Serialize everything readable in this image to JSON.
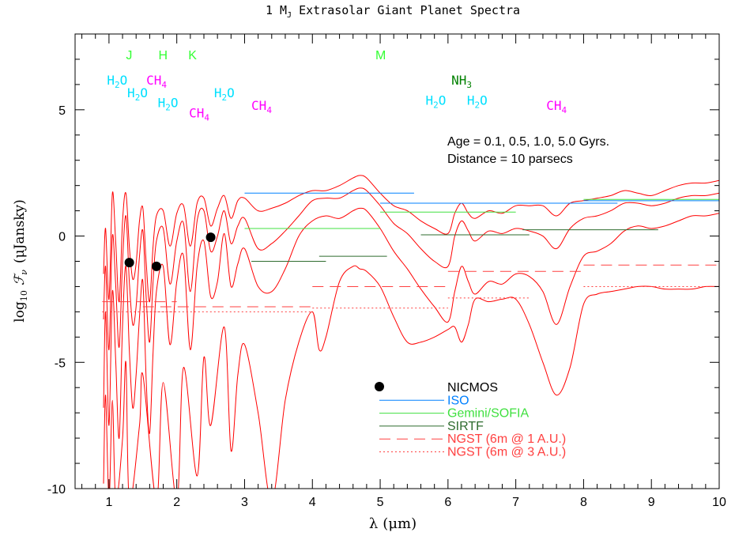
{
  "chart_data": {
    "type": "line",
    "title": "1 M",
    "title_sub": "J",
    "title_rest": " Extrasolar Giant Planet Spectra",
    "xlabel_symbol": "λ",
    "xlabel_unit": "(μm)",
    "ylabel_prefix": "log",
    "ylabel_sub": "10",
    "ylabel_symbol": "ℱ",
    "ylabel_symbol_sub": "ν",
    "ylabel_unit": "(μJansky)",
    "xlim": [
      0.5,
      10
    ],
    "ylim": [
      -10,
      8
    ],
    "x_ticks": [
      1,
      2,
      3,
      4,
      5,
      6,
      7,
      8,
      9,
      10
    ],
    "x_tick_labels": [
      "1",
      "2",
      "3",
      "4",
      "5",
      "6",
      "7",
      "8",
      "9",
      "10"
    ],
    "y_ticks": [
      -10,
      -5,
      0,
      5
    ],
    "y_tick_labels": [
      "-10",
      "-5",
      "0",
      "5"
    ],
    "info_lines": [
      "Age = 0.1, 0.5, 1.0, 5.0 Gyrs.",
      "Distance = 10 parsecs"
    ],
    "band_labels": [
      {
        "text": "J",
        "x": 1.25,
        "y": 7.0
      },
      {
        "text": "H",
        "x": 1.73,
        "y": 7.0
      },
      {
        "text": "K",
        "x": 2.17,
        "y": 7.0
      },
      {
        "text": "M",
        "x": 4.93,
        "y": 7.0
      }
    ],
    "molecule_labels": [
      {
        "base": "H",
        "sub": "2",
        "tail": "O",
        "x": 0.97,
        "y": 6.0,
        "color": "#00e0ff"
      },
      {
        "base": "CH",
        "sub": "4",
        "tail": "",
        "x": 1.55,
        "y": 6.0,
        "color": "#ff00ff"
      },
      {
        "base": "H",
        "sub": "2",
        "tail": "O",
        "x": 1.27,
        "y": 5.5,
        "color": "#00e0ff"
      },
      {
        "base": "H",
        "sub": "2",
        "tail": "O",
        "x": 1.72,
        "y": 5.1,
        "color": "#00e0ff"
      },
      {
        "base": "CH",
        "sub": "4",
        "tail": "",
        "x": 2.18,
        "y": 4.7,
        "color": "#ff00ff"
      },
      {
        "base": "H",
        "sub": "2",
        "tail": "O",
        "x": 2.55,
        "y": 5.5,
        "color": "#00e0ff"
      },
      {
        "base": "CH",
        "sub": "4",
        "tail": "",
        "x": 3.1,
        "y": 5.0,
        "color": "#ff00ff"
      },
      {
        "base": "NH",
        "sub": "3",
        "tail": "",
        "x": 6.05,
        "y": 6.0,
        "color": "#008000"
      },
      {
        "base": "H",
        "sub": "2",
        "tail": "O",
        "x": 5.67,
        "y": 5.2,
        "color": "#00e0ff"
      },
      {
        "base": "H",
        "sub": "2",
        "tail": "O",
        "x": 6.28,
        "y": 5.2,
        "color": "#00e0ff"
      },
      {
        "base": "CH",
        "sub": "4",
        "tail": "",
        "x": 7.45,
        "y": 5.0,
        "color": "#ff00ff"
      }
    ],
    "series": [
      {
        "color": "#ff0000",
        "x": [
          0.92,
          0.95,
          1.0,
          1.05,
          1.1,
          1.15,
          1.2,
          1.25,
          1.3,
          1.35,
          1.4,
          1.45,
          1.5,
          1.55,
          1.6,
          1.65,
          1.7,
          1.8,
          1.9,
          2.0,
          2.1,
          2.2,
          2.3,
          2.4,
          2.5,
          2.6,
          2.7,
          2.8,
          2.9,
          3.0,
          3.2,
          3.4,
          3.6,
          3.8,
          4.0,
          4.2,
          4.4,
          4.6,
          4.7,
          4.8,
          5.0,
          5.2,
          5.4,
          5.6,
          5.8,
          6.0,
          6.1,
          6.2,
          6.3,
          6.4,
          6.6,
          6.8,
          7.0,
          7.2,
          7.4,
          7.6,
          7.8,
          8.0,
          8.2,
          8.4,
          8.6,
          8.8,
          9.0,
          9.2,
          9.4,
          9.6,
          9.8,
          10.0
        ],
        "y": [
          -1.5,
          0.3,
          -2.5,
          1.7,
          -0.3,
          -2.6,
          0.6,
          1.7,
          -0.4,
          -1.7,
          -1.1,
          0.6,
          1.1,
          -1.1,
          -2.6,
          -0.4,
          0.8,
          1.0,
          -0.4,
          0.9,
          1.2,
          -0.4,
          1.3,
          1.5,
          0.4,
          1.1,
          1.6,
          0.7,
          1.4,
          1.5,
          1.0,
          1.1,
          1.3,
          1.6,
          1.8,
          1.8,
          2.0,
          2.3,
          2.4,
          2.3,
          1.7,
          1.2,
          1.0,
          0.6,
          0.3,
          0.1,
          0.9,
          1.3,
          0.9,
          0.7,
          1.0,
          0.9,
          1.2,
          1.2,
          1.2,
          0.8,
          1.3,
          1.4,
          1.5,
          1.6,
          1.8,
          1.7,
          1.6,
          1.8,
          2.0,
          2.1,
          2.1,
          2.2
        ]
      },
      {
        "color": "#ff0000",
        "x": [
          0.92,
          0.95,
          1.0,
          1.05,
          1.1,
          1.15,
          1.2,
          1.25,
          1.3,
          1.35,
          1.4,
          1.45,
          1.5,
          1.55,
          1.6,
          1.65,
          1.7,
          1.8,
          1.9,
          2.0,
          2.1,
          2.2,
          2.3,
          2.4,
          2.5,
          2.6,
          2.7,
          2.8,
          2.9,
          3.0,
          3.2,
          3.4,
          3.6,
          3.8,
          4.0,
          4.2,
          4.4,
          4.6,
          4.7,
          4.8,
          5.0,
          5.2,
          5.4,
          5.6,
          5.8,
          6.0,
          6.1,
          6.2,
          6.3,
          6.4,
          6.6,
          6.8,
          7.0,
          7.2,
          7.4,
          7.6,
          7.8,
          8.0,
          8.2,
          8.4,
          8.6,
          8.8,
          9.0,
          9.2,
          9.4,
          9.6,
          9.8,
          10.0
        ],
        "y": [
          -3.3,
          -1.2,
          -4.5,
          0.0,
          -2.0,
          -4.4,
          -1.0,
          0.8,
          -1.8,
          -3.5,
          -2.8,
          -0.8,
          0.2,
          -2.5,
          -4.2,
          -1.8,
          -0.2,
          0.3,
          -1.9,
          -0.2,
          0.5,
          -2.2,
          0.6,
          1.0,
          -0.6,
          0.0,
          1.0,
          -0.3,
          0.4,
          0.7,
          -0.5,
          -0.3,
          0.2,
          0.8,
          1.4,
          1.5,
          1.5,
          1.8,
          1.9,
          1.8,
          1.2,
          0.5,
          0.1,
          -0.5,
          -1.0,
          -1.2,
          0.0,
          0.6,
          0.2,
          -0.2,
          0.2,
          0.1,
          0.3,
          0.2,
          0.0,
          -0.5,
          0.3,
          0.7,
          0.8,
          1.0,
          1.3,
          1.3,
          1.2,
          1.3,
          1.5,
          1.6,
          1.6,
          1.7
        ]
      },
      {
        "color": "#ff0000",
        "x": [
          0.92,
          0.95,
          1.0,
          1.05,
          1.1,
          1.15,
          1.2,
          1.25,
          1.3,
          1.35,
          1.4,
          1.45,
          1.5,
          1.55,
          1.6,
          1.65,
          1.7,
          1.8,
          1.9,
          2.0,
          2.1,
          2.2,
          2.3,
          2.4,
          2.5,
          2.6,
          2.7,
          2.8,
          2.9,
          3.0,
          3.2,
          3.4,
          3.6,
          3.8,
          4.0,
          4.2,
          4.4,
          4.6,
          4.7,
          4.8,
          5.0,
          5.2,
          5.4,
          5.6,
          5.8,
          6.0,
          6.1,
          6.2,
          6.3,
          6.4,
          6.6,
          6.8,
          7.0,
          7.2,
          7.4,
          7.6,
          7.8,
          8.0,
          8.2,
          8.4,
          8.6,
          8.8,
          9.0,
          9.2,
          9.4,
          9.6,
          9.8,
          10.0
        ],
        "y": [
          -6.8,
          -3.0,
          -7.5,
          -2.2,
          -5.0,
          -8.0,
          -3.5,
          -1.2,
          -4.5,
          -6.8,
          -5.5,
          -3.2,
          -1.8,
          -5.8,
          -7.8,
          -4.6,
          -2.2,
          -1.2,
          -4.3,
          -1.8,
          -0.8,
          -4.5,
          -1.2,
          -0.2,
          -2.4,
          -1.8,
          0.1,
          -2.0,
          -1.1,
          -0.5,
          -2.0,
          -2.2,
          -1.3,
          0.0,
          0.6,
          0.8,
          0.7,
          1.0,
          1.1,
          1.0,
          0.3,
          -0.6,
          -1.3,
          -2.1,
          -2.8,
          -3.4,
          -2.2,
          -1.2,
          -1.8,
          -2.3,
          -1.8,
          -1.9,
          -1.5,
          -1.6,
          -2.2,
          -3.5,
          -2.0,
          -0.8,
          -0.6,
          -0.3,
          0.2,
          0.4,
          0.3,
          0.4,
          0.6,
          0.8,
          0.8,
          0.9
        ]
      },
      {
        "color": "#ff0000",
        "x": [
          0.92,
          0.95,
          1.0,
          1.05,
          1.1,
          1.2,
          1.25,
          1.3,
          1.45,
          1.5,
          1.7,
          1.8,
          2.0,
          2.1,
          2.3,
          2.4,
          2.5,
          2.7,
          2.8,
          2.9,
          3.0,
          3.2,
          3.4,
          3.6,
          3.8,
          4.0,
          4.1,
          4.2,
          4.4,
          4.6,
          4.7,
          4.8,
          5.0,
          5.2,
          5.4,
          5.6,
          5.8,
          6.0,
          6.1,
          6.2,
          6.3,
          6.4,
          6.6,
          6.8,
          7.0,
          7.2,
          7.4,
          7.6,
          7.8,
          8.0,
          8.2,
          8.4,
          8.6,
          8.8,
          9.0,
          9.2,
          9.4,
          9.6,
          9.8,
          10.0
        ],
        "y": [
          -9.8,
          -6.3,
          -10.5,
          -6.5,
          -10.5,
          -8.0,
          -5.0,
          -10.5,
          -7.5,
          -5.5,
          -10.5,
          -5.8,
          -10.5,
          -5.2,
          -9.5,
          -4.8,
          -7.5,
          -3.6,
          -8.5,
          -5.5,
          -4.3,
          -7.0,
          -10.5,
          -6.5,
          -4.2,
          -3.0,
          -4.5,
          -4.0,
          -1.8,
          -1.2,
          -1.3,
          -1.4,
          -2.0,
          -3.2,
          -4.2,
          -4.2,
          -4.0,
          -3.7,
          -3.6,
          -4.2,
          -3.5,
          -2.5,
          -2.6,
          -2.5,
          -2.5,
          -3.5,
          -5.0,
          -6.3,
          -5.2,
          -2.7,
          -2.3,
          -2.2,
          -2.1,
          -2.0,
          -2.0,
          -2.1,
          -2.1,
          -2.1,
          -2.0,
          -2.0
        ]
      }
    ],
    "instrument_segments": [
      {
        "instrument": "ISO",
        "color": "#0080ff",
        "dash": "solid",
        "x0": 3.0,
        "x1": 5.5,
        "y": 1.7
      },
      {
        "instrument": "ISO",
        "color": "#0080ff",
        "dash": "solid",
        "x0": 5.0,
        "x1": 8.5,
        "y": 1.3
      },
      {
        "instrument": "ISO",
        "color": "#0080ff",
        "dash": "solid",
        "x0": 8.0,
        "x1": 10.0,
        "y": 1.4
      },
      {
        "instrument": "Gemini/SOFIA",
        "color": "#40e040",
        "dash": "solid",
        "x0": 3.0,
        "x1": 5.0,
        "y": 0.3
      },
      {
        "instrument": "Gemini/SOFIA",
        "color": "#40e040",
        "dash": "solid",
        "x0": 5.0,
        "x1": 7.0,
        "y": 0.95
      },
      {
        "instrument": "Gemini/SOFIA",
        "color": "#40e040",
        "dash": "solid",
        "x0": 8.0,
        "x1": 10.0,
        "y": 1.45
      },
      {
        "instrument": "SIRTF",
        "color": "#2e6b2e",
        "dash": "solid",
        "x0": 3.1,
        "x1": 4.2,
        "y": -1.0
      },
      {
        "instrument": "SIRTF",
        "color": "#2e6b2e",
        "dash": "solid",
        "x0": 4.1,
        "x1": 5.1,
        "y": -0.8
      },
      {
        "instrument": "SIRTF",
        "color": "#2e6b2e",
        "dash": "solid",
        "x0": 5.6,
        "x1": 7.2,
        "y": 0.05
      },
      {
        "instrument": "SIRTF",
        "color": "#2e6b2e",
        "dash": "solid",
        "x0": 7.1,
        "x1": 9.1,
        "y": 0.25
      },
      {
        "instrument": "NGST (6m @ 1 A.U.)",
        "color": "#ff4040",
        "dash": "dashed",
        "x0": 0.9,
        "x1": 2.0,
        "y": -2.6
      },
      {
        "instrument": "NGST (6m @ 1 A.U.)",
        "color": "#ff4040",
        "dash": "dashed",
        "x0": 1.5,
        "x1": 4.0,
        "y": -2.8
      },
      {
        "instrument": "NGST (6m @ 1 A.U.)",
        "color": "#ff4040",
        "dash": "dashed",
        "x0": 4.0,
        "x1": 6.0,
        "y": -2.0
      },
      {
        "instrument": "NGST (6m @ 1 A.U.)",
        "color": "#ff4040",
        "dash": "dashed",
        "x0": 6.0,
        "x1": 8.0,
        "y": -1.4
      },
      {
        "instrument": "NGST (6m @ 1 A.U.)",
        "color": "#ff4040",
        "dash": "dashed",
        "x0": 8.0,
        "x1": 10.0,
        "y": -1.15
      },
      {
        "instrument": "NGST (6m @ 3 A.U.)",
        "color": "#ff4040",
        "dash": "dotted",
        "x0": 0.9,
        "x1": 2.0,
        "y": -3.0
      },
      {
        "instrument": "NGST (6m @ 3 A.U.)",
        "color": "#ff4040",
        "dash": "dotted",
        "x0": 1.5,
        "x1": 4.0,
        "y": -3.0
      },
      {
        "instrument": "NGST (6m @ 3 A.U.)",
        "color": "#ff4040",
        "dash": "dotted",
        "x0": 4.0,
        "x1": 6.0,
        "y": -2.85
      },
      {
        "instrument": "NGST (6m @ 3 A.U.)",
        "color": "#ff4040",
        "dash": "dotted",
        "x0": 6.0,
        "x1": 7.2,
        "y": -2.45
      },
      {
        "instrument": "NGST (6m @ 3 A.U.)",
        "color": "#ff4040",
        "dash": "dotted",
        "x0": 8.0,
        "x1": 10.0,
        "y": -2.0
      }
    ],
    "nicmos_points": [
      {
        "x": 1.3,
        "y": -1.05
      },
      {
        "x": 1.7,
        "y": -1.2
      },
      {
        "x": 2.5,
        "y": -0.05
      }
    ],
    "legend": [
      {
        "name": "NICMOS",
        "color": "#000000",
        "marker": "dot",
        "text_color": "#000000"
      },
      {
        "name": "ISO",
        "color": "#0080ff",
        "marker": "solid",
        "text_color": "#0080ff"
      },
      {
        "name": "Gemini/SOFIA",
        "color": "#40e040",
        "marker": "solid",
        "text_color": "#40e040"
      },
      {
        "name": "SIRTF",
        "color": "#2e6b2e",
        "marker": "solid",
        "text_color": "#2e6b2e"
      },
      {
        "name": "NGST (6m @ 1 A.U.)",
        "color": "#ff4040",
        "marker": "dashed",
        "text_color": "#ff4040"
      },
      {
        "name": "NGST (6m @ 3 A.U.)",
        "color": "#ff4040",
        "marker": "dotted",
        "text_color": "#ff4040"
      }
    ],
    "legend_placement": "lower-center",
    "band_color": "#33ff33",
    "grid": false
  }
}
